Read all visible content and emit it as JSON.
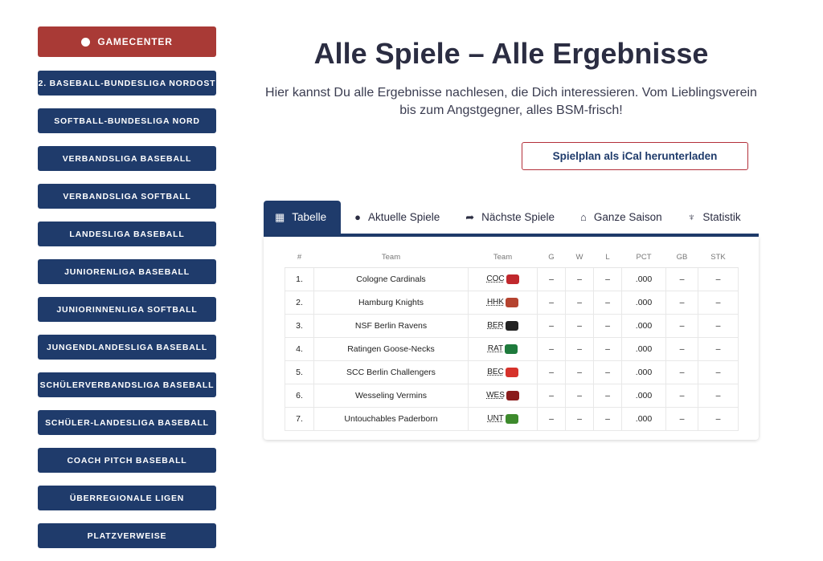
{
  "sidebar": {
    "gamecenter": "GAMECENTER",
    "items": [
      "2. BASEBALL-BUNDESLIGA NORDOST",
      "SOFTBALL-BUNDESLIGA NORD",
      "VERBANDSLIGA BASEBALL",
      "VERBANDSLIGA SOFTBALL",
      "LANDESLIGA BASEBALL",
      "JUNIORENLIGA BASEBALL",
      "JUNIORINNENLIGA SOFTBALL",
      "JUNGENDLANDESLIGA BASEBALL",
      "SCHÜLERVERBANDSLIGA BASEBALL",
      "SCHÜLER-LANDESLIGA BASEBALL",
      "COACH PITCH BASEBALL",
      "ÜBERREGIONALE LIGEN",
      "PLATZVERWEISE"
    ]
  },
  "header": {
    "title": "Alle Spiele – Alle Ergebnisse",
    "subtitle": "Hier kannst Du alle Ergebnisse nachlesen, die Dich interessieren. Vom Lieblingsverein bis zum Angstgegner, alles BSM-frisch!",
    "ical": "Spielplan als iCal herunterladen"
  },
  "tabs": [
    {
      "label": "Tabelle",
      "icon": "▦"
    },
    {
      "label": "Aktuelle Spiele",
      "icon": "●"
    },
    {
      "label": "Nächste Spiele",
      "icon": "➦"
    },
    {
      "label": "Ganze Saison",
      "icon": "⌂"
    },
    {
      "label": "Statistik",
      "icon": "♆"
    }
  ],
  "table": {
    "headers": [
      "#",
      "Team",
      "Team",
      "G",
      "W",
      "L",
      "PCT",
      "GB",
      "STK"
    ],
    "rows": [
      [
        "1.",
        "Cologne Cardinals",
        "COC",
        "–",
        "–",
        "–",
        ".000",
        "–",
        "–"
      ],
      [
        "2.",
        "Hamburg Knights",
        "HHK",
        "–",
        "–",
        "–",
        ".000",
        "–",
        "–"
      ],
      [
        "3.",
        "NSF Berlin Ravens",
        "BER",
        "–",
        "–",
        "–",
        ".000",
        "–",
        "–"
      ],
      [
        "4.",
        "Ratingen Goose-Necks",
        "RAT",
        "–",
        "–",
        "–",
        ".000",
        "–",
        "–"
      ],
      [
        "5.",
        "SCC Berlin Challengers",
        "BEC",
        "–",
        "–",
        "–",
        ".000",
        "–",
        "–"
      ],
      [
        "6.",
        "Wesseling Vermins",
        "WES",
        "–",
        "–",
        "–",
        ".000",
        "–",
        "–"
      ],
      [
        "7.",
        "Untouchables Paderborn",
        "UNT",
        "–",
        "–",
        "–",
        ".000",
        "–",
        "–"
      ]
    ],
    "logo_colors": [
      "#c0282d",
      "#b5432f",
      "#222222",
      "#1e7a3c",
      "#d6322b",
      "#8a1c1c",
      "#3d8a2c"
    ]
  }
}
